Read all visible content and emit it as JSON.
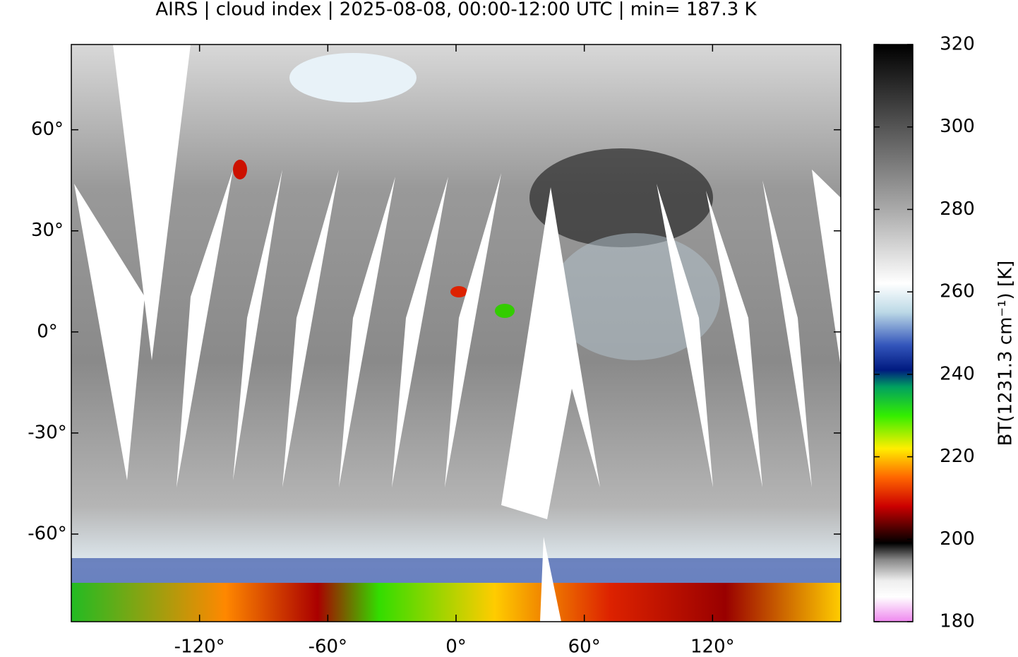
{
  "map": {
    "title": "AIRS | cloud index | 2025-08-08, 00:00-12:00 UTC | min= 187.3 K",
    "xlim": [
      -180,
      180
    ],
    "ylim": [
      -86,
      85.3
    ],
    "xticks": [
      {
        "value": -120,
        "label": "-120°"
      },
      {
        "value": -60,
        "label": "-60°"
      },
      {
        "value": 0,
        "label": "0°"
      },
      {
        "value": 60,
        "label": "60°"
      },
      {
        "value": 120,
        "label": "120°"
      }
    ],
    "yticks": [
      {
        "value": 60,
        "label": "60°"
      },
      {
        "value": 30,
        "label": "30°"
      },
      {
        "value": 0,
        "label": "0°"
      },
      {
        "value": -30,
        "label": "-30°"
      },
      {
        "value": -60,
        "label": "-60°"
      }
    ],
    "colorbar": {
      "lim": [
        180,
        320
      ],
      "ticks": [
        180,
        200,
        220,
        240,
        260,
        280,
        300,
        320
      ],
      "label": "BT(1231.3 cm⁻¹) [K]"
    }
  }
}
